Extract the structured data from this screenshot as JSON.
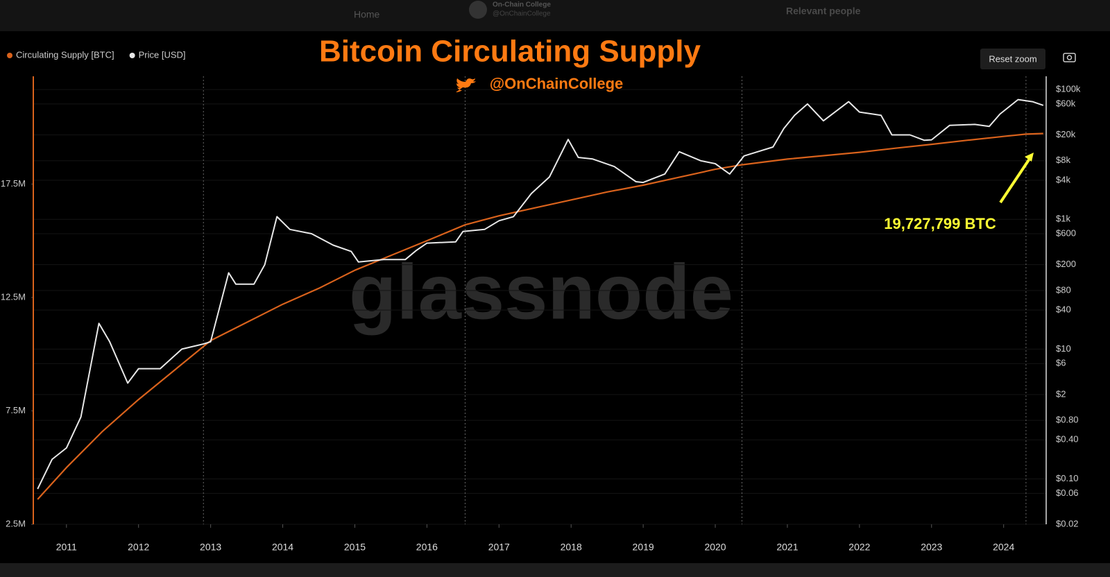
{
  "page_chrome": {
    "nav": "Home",
    "account_name": "On-Chain College",
    "account_handle": "@OnChainCollege",
    "sidebar": "Relevant people"
  },
  "chart_data": {
    "type": "line",
    "title": "Bitcoin Circulating Supply",
    "subtitle": "@OnChainCollege",
    "watermark": "glassnode",
    "button": "Reset zoom",
    "annotation": {
      "text": "19,727,799 BTC",
      "color": "#ffff33"
    },
    "xlim": [
      2010.54,
      2024.59
    ],
    "xticks": [
      2011,
      2012,
      2013,
      2014,
      2015,
      2016,
      2017,
      2018,
      2019,
      2020,
      2021,
      2022,
      2023,
      2024
    ],
    "vlines": [
      2012.9,
      2016.53,
      2020.37,
      2024.31
    ],
    "ylim": [
      2500000,
      22250000
    ],
    "yticks": [
      {
        "value": 2500000,
        "label": "2.5M"
      },
      {
        "value": 7500000,
        "label": "7.5M"
      },
      {
        "value": 12500000,
        "label": "12.5M"
      },
      {
        "value": 17500000,
        "label": "17.5M"
      }
    ],
    "y2lim": [
      0.02,
      160000
    ],
    "y2log": true,
    "y2ticks": [
      {
        "value": 100000,
        "label": "$100k"
      },
      {
        "value": 60000,
        "label": "$60k"
      },
      {
        "value": 20000,
        "label": "$20k"
      },
      {
        "value": 8000,
        "label": "$8k"
      },
      {
        "value": 4000,
        "label": "$4k"
      },
      {
        "value": 1000,
        "label": "$1k"
      },
      {
        "value": 600,
        "label": "$600"
      },
      {
        "value": 200,
        "label": "$200"
      },
      {
        "value": 80,
        "label": "$80"
      },
      {
        "value": 40,
        "label": "$40"
      },
      {
        "value": 10,
        "label": "$10"
      },
      {
        "value": 6,
        "label": "$6"
      },
      {
        "value": 2,
        "label": "$2"
      },
      {
        "value": 0.8,
        "label": "$0.80"
      },
      {
        "value": 0.4,
        "label": "$0.40"
      },
      {
        "value": 0.1,
        "label": "$0.10"
      },
      {
        "value": 0.06,
        "label": "$0.06"
      },
      {
        "value": 0.02,
        "label": "$0.02"
      }
    ],
    "series": [
      {
        "name": "Circulating Supply [BTC]",
        "color": "#d9621c",
        "x": [
          2010.6,
          2011.0,
          2011.5,
          2012.0,
          2012.5,
          2013.0,
          2013.5,
          2014.0,
          2014.5,
          2015.0,
          2015.5,
          2016.0,
          2016.53,
          2017.0,
          2017.5,
          2018.0,
          2018.5,
          2019.0,
          2019.5,
          2020.0,
          2020.37,
          2021.0,
          2021.5,
          2022.0,
          2022.5,
          2023.0,
          2023.5,
          2024.0,
          2024.31,
          2024.55
        ],
        "values": [
          3600000,
          5000000,
          6600000,
          8000000,
          9300000,
          10600000,
          11400000,
          12200000,
          12900000,
          13700000,
          14350000,
          15000000,
          15700000,
          16100000,
          16450000,
          16800000,
          17150000,
          17450000,
          17800000,
          18150000,
          18350000,
          18600000,
          18750000,
          18900000,
          19080000,
          19250000,
          19430000,
          19600000,
          19700000,
          19727799
        ]
      },
      {
        "name": "Price [USD]",
        "color": "#e8e8e8",
        "x": [
          2010.6,
          2010.8,
          2011.0,
          2011.2,
          2011.45,
          2011.6,
          2011.85,
          2012.0,
          2012.3,
          2012.6,
          2012.9,
          2013.0,
          2013.25,
          2013.35,
          2013.6,
          2013.75,
          2013.92,
          2014.1,
          2014.4,
          2014.7,
          2014.95,
          2015.05,
          2015.4,
          2015.7,
          2015.85,
          2016.0,
          2016.4,
          2016.5,
          2016.8,
          2017.0,
          2017.2,
          2017.45,
          2017.7,
          2017.96,
          2018.1,
          2018.3,
          2018.6,
          2018.9,
          2019.0,
          2019.3,
          2019.5,
          2019.8,
          2020.0,
          2020.2,
          2020.4,
          2020.8,
          2020.95,
          2021.1,
          2021.28,
          2021.5,
          2021.85,
          2022.0,
          2022.3,
          2022.45,
          2022.7,
          2022.9,
          2023.0,
          2023.25,
          2023.6,
          2023.8,
          2023.95,
          2024.2,
          2024.4,
          2024.55
        ],
        "values": [
          0.07,
          0.2,
          0.3,
          0.9,
          25,
          13,
          3,
          5,
          5,
          10,
          12,
          13,
          150,
          100,
          100,
          200,
          1100,
          700,
          600,
          400,
          320,
          220,
          240,
          240,
          330,
          430,
          450,
          650,
          700,
          950,
          1100,
          2500,
          4500,
          17000,
          9000,
          8500,
          6500,
          3800,
          3700,
          5000,
          11000,
          8000,
          7200,
          5000,
          9500,
          13000,
          25000,
          40000,
          60000,
          33000,
          65000,
          45000,
          40000,
          20000,
          20000,
          16500,
          16800,
          28000,
          29000,
          27000,
          42000,
          70000,
          65000,
          57000
        ],
        "axis": "y2"
      }
    ]
  }
}
